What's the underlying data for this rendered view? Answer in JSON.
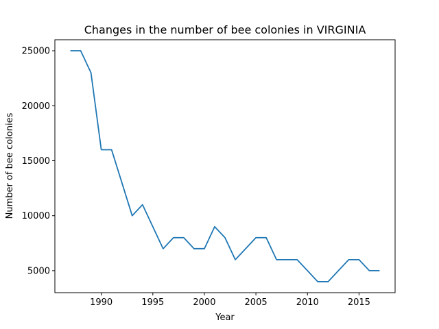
{
  "chart_data": {
    "type": "line",
    "title": "Changes in the number of bee colonies in VIRGINIA",
    "xlabel": "Year",
    "ylabel": "Number of bee colonies",
    "xlim": [
      1985.5,
      2018.5
    ],
    "ylim": [
      3000,
      26000
    ],
    "xticks": [
      1990,
      1995,
      2000,
      2005,
      2010,
      2015
    ],
    "yticks": [
      5000,
      10000,
      15000,
      20000,
      25000
    ],
    "grid": false,
    "line_color": "#1f77b4",
    "series": [
      {
        "x": [
          1987,
          1988,
          1989,
          1990,
          1991,
          1992,
          1993,
          1994,
          1995,
          1996,
          1997,
          1998,
          1999,
          2000,
          2001,
          2002,
          2003,
          2004,
          2005,
          2006,
          2007,
          2008,
          2009,
          2010,
          2011,
          2012,
          2013,
          2014,
          2015,
          2016,
          2017
        ],
        "values": [
          25000,
          25000,
          23000,
          16000,
          16000,
          13000,
          10000,
          11000,
          9000,
          7000,
          8000,
          8000,
          7000,
          7000,
          9000,
          8000,
          6000,
          7000,
          8000,
          8000,
          6000,
          6000,
          6000,
          5000,
          4000,
          4000,
          5000,
          6000,
          6000,
          5000,
          5000
        ]
      }
    ]
  }
}
